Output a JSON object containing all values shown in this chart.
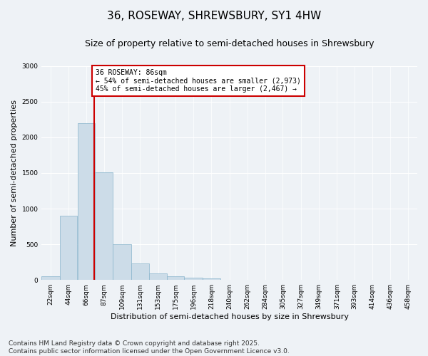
{
  "title": "36, ROSEWAY, SHREWSBURY, SY1 4HW",
  "subtitle": "Size of property relative to semi-detached houses in Shrewsbury",
  "xlabel": "Distribution of semi-detached houses by size in Shrewsbury",
  "ylabel": "Number of semi-detached properties",
  "bin_labels": [
    "22sqm",
    "44sqm",
    "66sqm",
    "87sqm",
    "109sqm",
    "131sqm",
    "153sqm",
    "175sqm",
    "196sqm",
    "218sqm",
    "240sqm",
    "262sqm",
    "284sqm",
    "305sqm",
    "327sqm",
    "349sqm",
    "371sqm",
    "393sqm",
    "414sqm",
    "436sqm",
    "458sqm"
  ],
  "bin_lefts": [
    22,
    44,
    66,
    87,
    109,
    131,
    153,
    175,
    196,
    218,
    240,
    262,
    284,
    305,
    327,
    349,
    371,
    393,
    414,
    436,
    458
  ],
  "bar_widths": [
    22,
    21,
    21,
    22,
    22,
    22,
    22,
    21,
    22,
    22,
    22,
    22,
    21,
    22,
    22,
    22,
    22,
    21,
    22,
    22,
    22
  ],
  "bar_heights": [
    50,
    900,
    2200,
    1510,
    500,
    230,
    90,
    50,
    30,
    20,
    5,
    2,
    1,
    0,
    0,
    0,
    0,
    0,
    0,
    0,
    0
  ],
  "bar_color": "#ccdce8",
  "bar_edge_color": "#8ab4cc",
  "property_size": 86,
  "red_line_color": "#cc0000",
  "annotation_text": "36 ROSEWAY: 86sqm\n← 54% of semi-detached houses are smaller (2,973)\n45% of semi-detached houses are larger (2,467) →",
  "annotation_box_color": "#ffffff",
  "annotation_box_edge": "#cc0000",
  "ylim": [
    0,
    3000
  ],
  "yticks": [
    0,
    500,
    1000,
    1500,
    2000,
    2500,
    3000
  ],
  "xmin": 22,
  "xmax": 480,
  "footer": "Contains HM Land Registry data © Crown copyright and database right 2025.\nContains public sector information licensed under the Open Government Licence v3.0.",
  "background_color": "#eef2f6",
  "title_fontsize": 11,
  "subtitle_fontsize": 9,
  "axis_label_fontsize": 8,
  "tick_fontsize": 6.5,
  "footer_fontsize": 6.5,
  "annotation_fontsize": 7
}
